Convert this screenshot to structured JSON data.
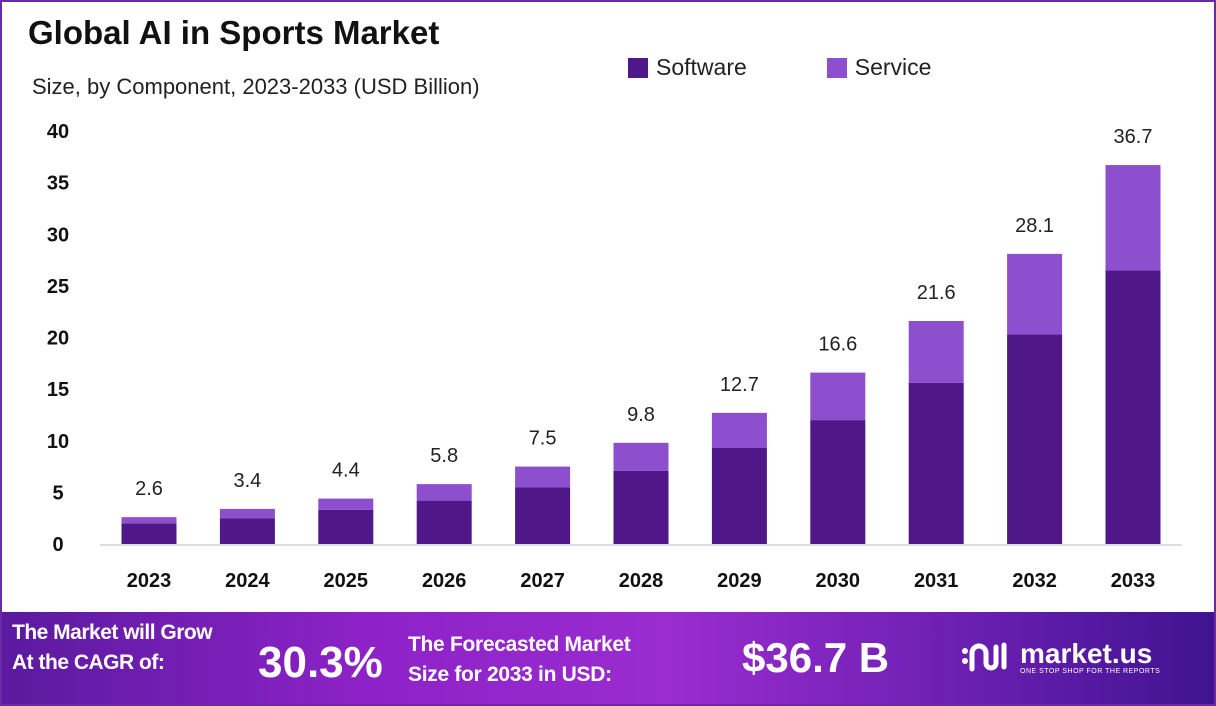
{
  "chart_data": {
    "type": "bar",
    "stacked": true,
    "title": "Global AI in Sports Market",
    "subtitle": "Size, by Component, 2023-2033 (USD Billion)",
    "categories": [
      "2023",
      "2024",
      "2025",
      "2026",
      "2027",
      "2028",
      "2029",
      "2030",
      "2031",
      "2032",
      "2033"
    ],
    "series": [
      {
        "name": "Software",
        "color": "#4f1787",
        "values": [
          2.0,
          2.5,
          3.3,
          4.2,
          5.5,
          7.1,
          9.3,
          12.0,
          15.6,
          20.3,
          26.5
        ]
      },
      {
        "name": "Service",
        "color": "#8e4fcf",
        "values": [
          0.6,
          0.9,
          1.1,
          1.6,
          2.0,
          2.7,
          3.4,
          4.6,
          6.0,
          7.8,
          10.2
        ]
      }
    ],
    "totals": [
      "2.6",
      "3.4",
      "4.4",
      "5.8",
      "7.5",
      "9.8",
      "12.7",
      "16.6",
      "21.6",
      "28.1",
      "36.7"
    ],
    "ylim": [
      0,
      40
    ],
    "yticks": [
      "0",
      "5",
      "10",
      "15",
      "20",
      "25",
      "30",
      "35",
      "40"
    ],
    "grid": false,
    "legend_position": "top-right"
  },
  "footer": {
    "cagr_line1": "The Market will Grow",
    "cagr_line2": "At the CAGR of:",
    "cagr_value": "30.3%",
    "forecast_line1": "The Forecasted Market",
    "forecast_line2": "Size for 2033 in USD:",
    "forecast_value": "$36.7 B",
    "logo_name": "market.us",
    "logo_tagline": "ONE STOP SHOP FOR THE REPORTS"
  }
}
